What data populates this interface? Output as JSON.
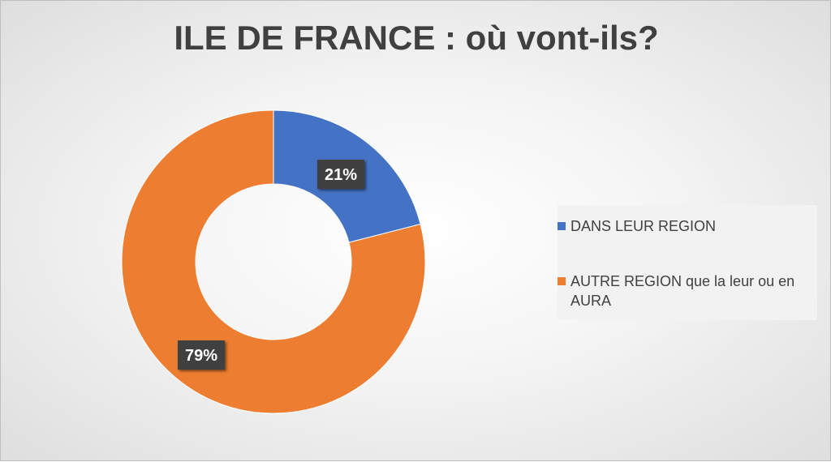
{
  "chart_data": {
    "type": "pie",
    "donut": true,
    "title": "ILE DE FRANCE : où vont-ils?",
    "categories": [
      "DANS LEUR REGION",
      "AUTRE REGION que la leur ou en AURA"
    ],
    "values": [
      21,
      79
    ],
    "data_labels": [
      "21%",
      "79%"
    ],
    "colors": [
      "#4472c4",
      "#ed7d31"
    ],
    "legend_position": "right"
  }
}
